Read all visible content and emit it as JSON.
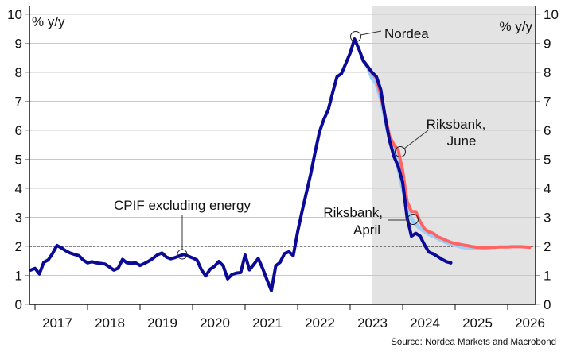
{
  "chart_data": {
    "type": "line",
    "ylabel_left": "% y/y",
    "ylabel_right": "% y/y",
    "ylim": [
      0,
      10
    ],
    "y_ticks": [
      0,
      1,
      2,
      3,
      4,
      5,
      6,
      7,
      8,
      9,
      10
    ],
    "x_tick_labels": [
      "2017",
      "2018",
      "2019",
      "2020",
      "2021",
      "2022",
      "2023",
      "2024",
      "2025",
      "2026"
    ],
    "xlim": [
      "2016-11",
      "2026-07"
    ],
    "grid": true,
    "reference_line": {
      "value": 2,
      "style": "dashed"
    },
    "forecast_shading_from": "2023-06",
    "source": "Source: Nordea Markets and Macrobond",
    "annotations": {
      "cpif": "CPIF excluding energy",
      "nordea": "Nordea",
      "june_line1": "Riksbank,",
      "june_line2": "June",
      "april_line1": "Riksbank,",
      "april_line2": "April"
    },
    "colors": {
      "cpif": "#0a0a96",
      "riksbank_june": "#ff6464",
      "riksbank_april": "#9fcdf5",
      "shading": "#e3e3e3"
    },
    "series": [
      {
        "key": "riksbank_april",
        "points": [
          [
            "2023-04",
            8.4
          ],
          [
            "2023-05",
            8.2
          ],
          [
            "2023-06",
            7.8
          ],
          [
            "2023-07",
            7.6
          ],
          [
            "2023-08",
            7.1
          ],
          [
            "2023-09",
            6.4
          ],
          [
            "2023-10",
            5.7
          ],
          [
            "2023-11",
            5.3
          ],
          [
            "2023-12",
            4.7
          ],
          [
            "2024-01",
            4.0
          ],
          [
            "2024-02",
            3.35
          ],
          [
            "2024-03",
            2.95
          ],
          [
            "2024-04",
            2.75
          ],
          [
            "2024-05",
            2.62
          ],
          [
            "2024-06",
            2.52
          ],
          [
            "2024-07",
            2.42
          ],
          [
            "2024-08",
            2.35
          ],
          [
            "2024-09",
            2.28
          ],
          [
            "2024-10",
            2.2
          ],
          [
            "2024-11",
            2.14
          ],
          [
            "2024-12",
            2.08
          ],
          [
            "2025-01",
            2.04
          ],
          [
            "2025-02",
            2.0
          ],
          [
            "2025-03",
            1.97
          ],
          [
            "2025-04",
            1.95
          ],
          [
            "2025-05",
            1.94
          ],
          [
            "2025-06",
            1.94
          ],
          [
            "2025-07",
            1.94
          ],
          [
            "2025-08",
            1.94
          ],
          [
            "2025-09",
            1.95
          ]
        ]
      },
      {
        "key": "riksbank_june",
        "points": [
          [
            "2023-04",
            8.4
          ],
          [
            "2023-05",
            8.2
          ],
          [
            "2023-06",
            7.97
          ],
          [
            "2023-07",
            7.8
          ],
          [
            "2023-08",
            7.2
          ],
          [
            "2023-09",
            6.5
          ],
          [
            "2023-10",
            5.8
          ],
          [
            "2023-11",
            5.5
          ],
          [
            "2023-12",
            5.3
          ],
          [
            "2024-01",
            4.6
          ],
          [
            "2024-02",
            3.55
          ],
          [
            "2024-03",
            3.2
          ],
          [
            "2024-04",
            3.2
          ],
          [
            "2024-05",
            2.85
          ],
          [
            "2024-06",
            2.6
          ],
          [
            "2024-07",
            2.5
          ],
          [
            "2024-08",
            2.45
          ],
          [
            "2024-09",
            2.33
          ],
          [
            "2024-10",
            2.27
          ],
          [
            "2024-11",
            2.2
          ],
          [
            "2024-12",
            2.14
          ],
          [
            "2025-01",
            2.1
          ],
          [
            "2025-02",
            2.07
          ],
          [
            "2025-03",
            2.04
          ],
          [
            "2025-04",
            2.02
          ],
          [
            "2025-05",
            1.99
          ],
          [
            "2025-06",
            1.97
          ],
          [
            "2025-07",
            1.96
          ],
          [
            "2025-08",
            1.96
          ],
          [
            "2025-09",
            1.97
          ],
          [
            "2025-10",
            1.97
          ],
          [
            "2025-11",
            1.98
          ],
          [
            "2025-12",
            1.98
          ],
          [
            "2026-01",
            1.98
          ],
          [
            "2026-02",
            1.99
          ],
          [
            "2026-03",
            1.99
          ],
          [
            "2026-04",
            1.99
          ],
          [
            "2026-05",
            1.98
          ],
          [
            "2026-06",
            1.97
          ]
        ]
      },
      {
        "key": "cpif",
        "points": [
          [
            "2016-12",
            1.18
          ],
          [
            "2017-01",
            1.24
          ],
          [
            "2017-02",
            1.05
          ],
          [
            "2017-03",
            1.45
          ],
          [
            "2017-04",
            1.53
          ],
          [
            "2017-05",
            1.75
          ],
          [
            "2017-06",
            2.03
          ],
          [
            "2017-07",
            1.95
          ],
          [
            "2017-08",
            1.85
          ],
          [
            "2017-09",
            1.77
          ],
          [
            "2017-10",
            1.72
          ],
          [
            "2017-11",
            1.68
          ],
          [
            "2017-12",
            1.53
          ],
          [
            "2018-01",
            1.43
          ],
          [
            "2018-02",
            1.47
          ],
          [
            "2018-03",
            1.43
          ],
          [
            "2018-04",
            1.41
          ],
          [
            "2018-05",
            1.39
          ],
          [
            "2018-06",
            1.29
          ],
          [
            "2018-07",
            1.18
          ],
          [
            "2018-08",
            1.25
          ],
          [
            "2018-09",
            1.55
          ],
          [
            "2018-10",
            1.43
          ],
          [
            "2018-11",
            1.42
          ],
          [
            "2018-12",
            1.43
          ],
          [
            "2019-01",
            1.34
          ],
          [
            "2019-02",
            1.41
          ],
          [
            "2019-03",
            1.49
          ],
          [
            "2019-04",
            1.59
          ],
          [
            "2019-05",
            1.71
          ],
          [
            "2019-06",
            1.77
          ],
          [
            "2019-07",
            1.63
          ],
          [
            "2019-08",
            1.57
          ],
          [
            "2019-09",
            1.61
          ],
          [
            "2019-10",
            1.67
          ],
          [
            "2019-11",
            1.72
          ],
          [
            "2019-12",
            1.66
          ],
          [
            "2020-01",
            1.6
          ],
          [
            "2020-02",
            1.53
          ],
          [
            "2020-03",
            1.2
          ],
          [
            "2020-04",
            0.98
          ],
          [
            "2020-05",
            1.21
          ],
          [
            "2020-06",
            1.31
          ],
          [
            "2020-07",
            1.48
          ],
          [
            "2020-08",
            1.33
          ],
          [
            "2020-09",
            0.88
          ],
          [
            "2020-10",
            1.03
          ],
          [
            "2020-11",
            1.08
          ],
          [
            "2020-12",
            1.1
          ],
          [
            "2021-01",
            1.7
          ],
          [
            "2021-02",
            1.19
          ],
          [
            "2021-03",
            1.38
          ],
          [
            "2021-04",
            1.58
          ],
          [
            "2021-05",
            1.24
          ],
          [
            "2021-06",
            0.85
          ],
          [
            "2021-07",
            0.47
          ],
          [
            "2021-08",
            1.33
          ],
          [
            "2021-09",
            1.45
          ],
          [
            "2021-10",
            1.75
          ],
          [
            "2021-11",
            1.81
          ],
          [
            "2021-12",
            1.68
          ],
          [
            "2022-01",
            2.5
          ],
          [
            "2022-02",
            3.2
          ],
          [
            "2022-03",
            3.85
          ],
          [
            "2022-04",
            4.5
          ],
          [
            "2022-05",
            5.25
          ],
          [
            "2022-06",
            5.95
          ],
          [
            "2022-07",
            6.38
          ],
          [
            "2022-08",
            6.71
          ],
          [
            "2022-09",
            7.3
          ],
          [
            "2022-10",
            7.85
          ],
          [
            "2022-11",
            7.95
          ],
          [
            "2022-12",
            8.3
          ],
          [
            "2023-01",
            8.66
          ],
          [
            "2023-02",
            9.15
          ],
          [
            "2023-03",
            8.8
          ],
          [
            "2023-04",
            8.4
          ],
          [
            "2023-05",
            8.2
          ],
          [
            "2023-06",
            8.0
          ],
          [
            "2023-07",
            7.85
          ],
          [
            "2023-08",
            7.4
          ],
          [
            "2023-09",
            6.45
          ],
          [
            "2023-10",
            5.65
          ],
          [
            "2023-11",
            5.1
          ],
          [
            "2023-12",
            4.75
          ],
          [
            "2024-01",
            4.2
          ],
          [
            "2024-02",
            3.0
          ],
          [
            "2024-03",
            2.35
          ],
          [
            "2024-04",
            2.45
          ],
          [
            "2024-05",
            2.35
          ],
          [
            "2024-06",
            2.05
          ],
          [
            "2024-07",
            1.8
          ],
          [
            "2024-08",
            1.74
          ],
          [
            "2024-09",
            1.65
          ],
          [
            "2024-10",
            1.55
          ],
          [
            "2024-11",
            1.47
          ],
          [
            "2024-12",
            1.43
          ]
        ]
      }
    ]
  }
}
